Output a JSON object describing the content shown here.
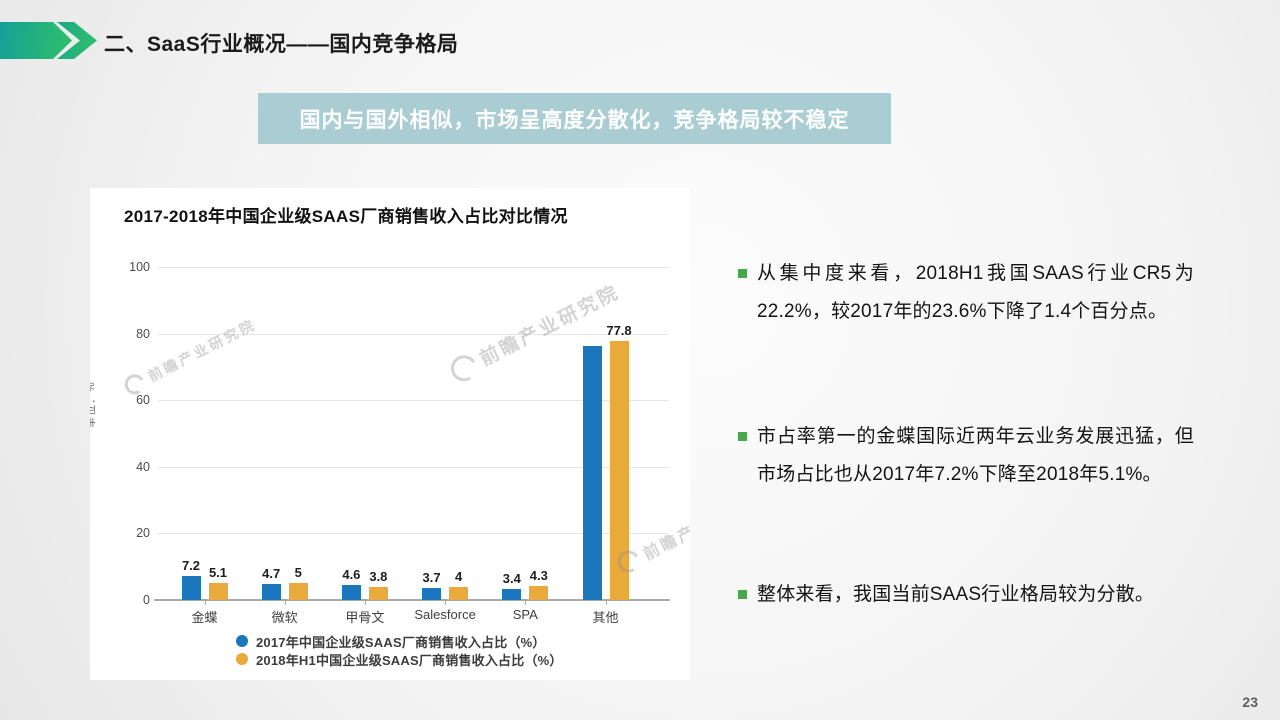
{
  "header": {
    "title": "二、SaaS行业概况——国内竞争格局"
  },
  "banner": {
    "text": "国内与国外相似，市场呈高度分散化，竞争格局较不稳定"
  },
  "chart": {
    "watermark_text": "前瞻产业研究院",
    "watermark_icon": "qianzhan-logo-icon"
  },
  "chart_data": {
    "type": "bar",
    "title": "2017-2018年中国企业级SAAS厂商销售收入占比对比情况",
    "categories": [
      "金蝶",
      "微软",
      "甲骨文",
      "Salesforce",
      "SPA",
      "其他"
    ],
    "series": [
      {
        "name": "2017年中国企业级SAAS厂商销售收入占比（%）",
        "color": "#1b76bb",
        "values": [
          7.2,
          4.7,
          4.6,
          3.7,
          3.4,
          76.4
        ],
        "labels": [
          "7.2",
          "4.7",
          "4.6",
          "3.7",
          "3.4",
          ""
        ]
      },
      {
        "name": "2018年H1中国企业级SAAS厂商销售收入占比（%）",
        "color": "#e9a93b",
        "values": [
          5.1,
          5,
          3.8,
          4,
          4.3,
          77.8
        ],
        "labels": [
          "5.1",
          "5",
          "3.8",
          "4",
          "4.3",
          "77.8"
        ]
      }
    ],
    "ylabel": "单位：%",
    "ylim": [
      0,
      100
    ],
    "yticks": [
      0,
      20,
      40,
      60,
      80,
      100
    ],
    "grid": true,
    "legend_position": "bottom"
  },
  "notes": {
    "items": [
      {
        "text": "从集中度来看，2018H1我国SAAS行业CR5为22.2%，较2017年的23.6%下降了1.4个百分点。"
      },
      {
        "text": "市占率第一的金蝶国际近两年云业务发展迅猛，但市场占比也从2017年7.2%下降至2018年5.1%。"
      },
      {
        "text": "整体来看，我国当前SAAS行业格局较为分散。"
      }
    ]
  },
  "footer": {
    "page_number": "23"
  }
}
